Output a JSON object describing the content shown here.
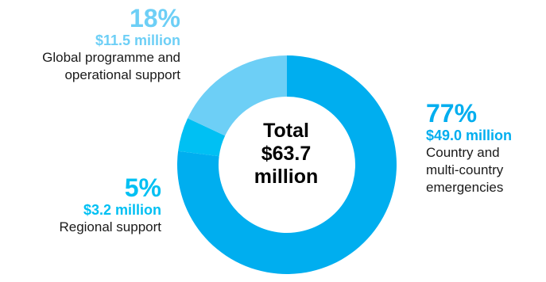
{
  "chart_data": {
    "type": "pie",
    "center_label": [
      "Total",
      "$63.7",
      "million"
    ],
    "slices": [
      {
        "percent_label": "77%",
        "percent": 77,
        "amount": "$49.0 million",
        "description": [
          "Country and",
          "multi-country",
          "emergencies"
        ],
        "color": "#00aeef"
      },
      {
        "percent_label": "5%",
        "percent": 5,
        "amount": "$3.2 million",
        "description": [
          "Regional support"
        ],
        "color": "#00c0f3"
      },
      {
        "percent_label": "18%",
        "percent": 18,
        "amount": "$11.5 million",
        "description": [
          "Global programme and",
          "operational support"
        ],
        "color": "#6dcff6"
      }
    ]
  }
}
